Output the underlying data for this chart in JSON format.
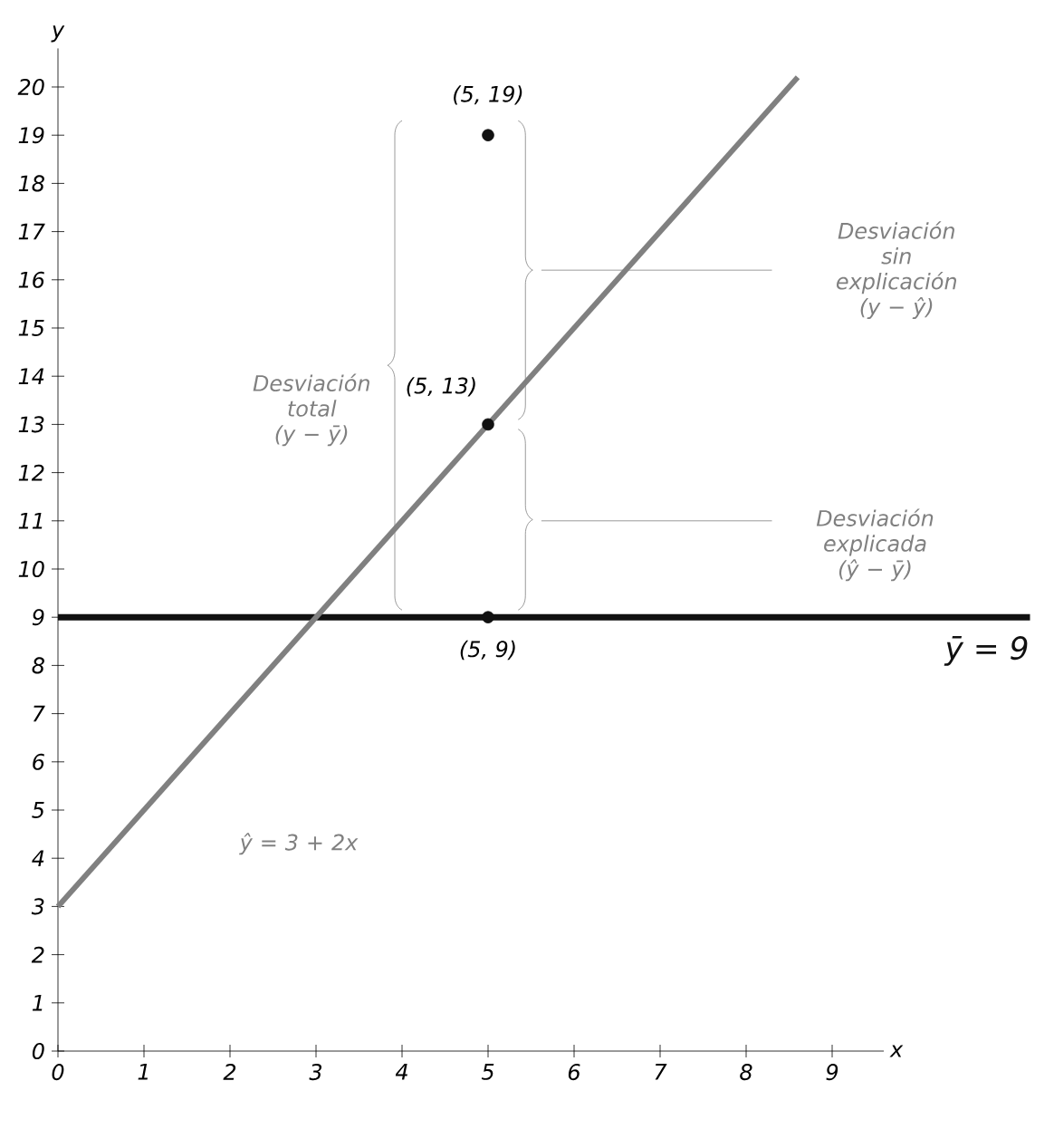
{
  "chart_data": {
    "type": "line",
    "xlabel": "x",
    "ylabel": "y",
    "xlim": [
      0,
      9.6
    ],
    "ylim": [
      0,
      20.8
    ],
    "xticks": [
      0,
      1,
      2,
      3,
      4,
      5,
      6,
      7,
      8,
      9
    ],
    "yticks": [
      0,
      1,
      2,
      3,
      4,
      5,
      6,
      7,
      8,
      9,
      10,
      11,
      12,
      13,
      14,
      15,
      16,
      17,
      18,
      19,
      20
    ],
    "series": [
      {
        "color": "#808080",
        "x": [
          0,
          8.6
        ],
        "values": [
          3,
          20.2
        ]
      },
      {
        "type": "scatter",
        "marker": "circle",
        "color": "#111111",
        "x": [
          5,
          5,
          5
        ],
        "values": [
          19,
          13,
          9
        ]
      }
    ],
    "ref_lines": [
      {
        "axis": "y",
        "value": 9,
        "label": "ȳ = 9",
        "color": "#111111"
      }
    ],
    "annotations": [
      "(5, 19)",
      "(5, 13)",
      "(5, 9)",
      "Desviación total (y − ȳ)",
      "Desviación sin explicación (y − ŷ)",
      "Desviación explicada (ŷ − ȳ)",
      "ŷ = 3 + 2x"
    ]
  }
}
